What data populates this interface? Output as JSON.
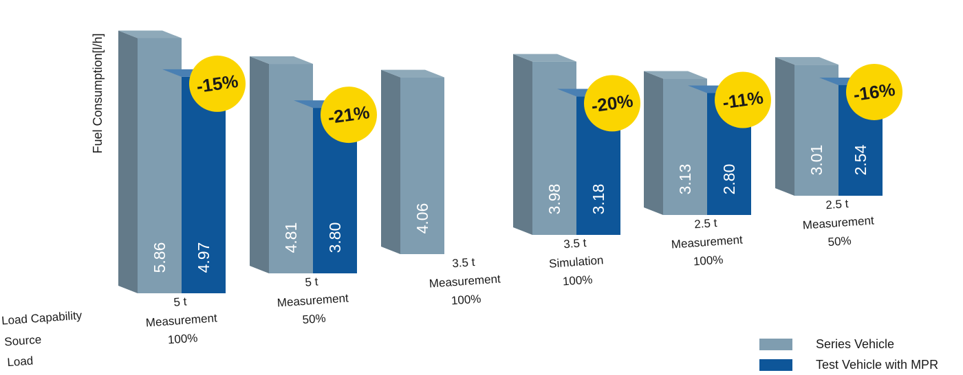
{
  "chart_data": {
    "type": "bar",
    "ylabel": "Fuel Consumption[l/h]",
    "row_labels": [
      "Load Capability",
      "Source",
      "Load"
    ],
    "categories": [
      {
        "capability": "5 t",
        "source": "Measurement",
        "load": "100%"
      },
      {
        "capability": "5 t",
        "source": "Measurement",
        "load": "50%"
      },
      {
        "capability": "3.5 t",
        "source": "Measurement",
        "load": "100%"
      },
      {
        "capability": "3.5 t",
        "source": "Simulation",
        "load": "100%"
      },
      {
        "capability": "2.5 t",
        "source": "Measurement",
        "load": "100%"
      },
      {
        "capability": "2.5 t",
        "source": "Measurement",
        "load": "50%"
      }
    ],
    "series": [
      {
        "name": "Series Vehicle",
        "color": "#7f9db0",
        "values": [
          5.86,
          4.81,
          4.06,
          3.98,
          3.13,
          3.01
        ],
        "labels": [
          "5.86",
          "4.81",
          "4.06",
          "3.98",
          "3.13",
          "3.01"
        ]
      },
      {
        "name": "Test Vehicle with MPR",
        "color": "#0e5699",
        "values": [
          4.97,
          3.8,
          null,
          3.18,
          2.8,
          2.54
        ],
        "labels": [
          "4.97",
          "3.80",
          "",
          "3.18",
          "2.80",
          "2.54"
        ]
      }
    ],
    "reductions": [
      "-15%",
      "-21%",
      "",
      "-20%",
      "-11%",
      "-16%"
    ],
    "badge_color": "#fbd500",
    "grid": false,
    "legend_position": "bottom-right"
  }
}
